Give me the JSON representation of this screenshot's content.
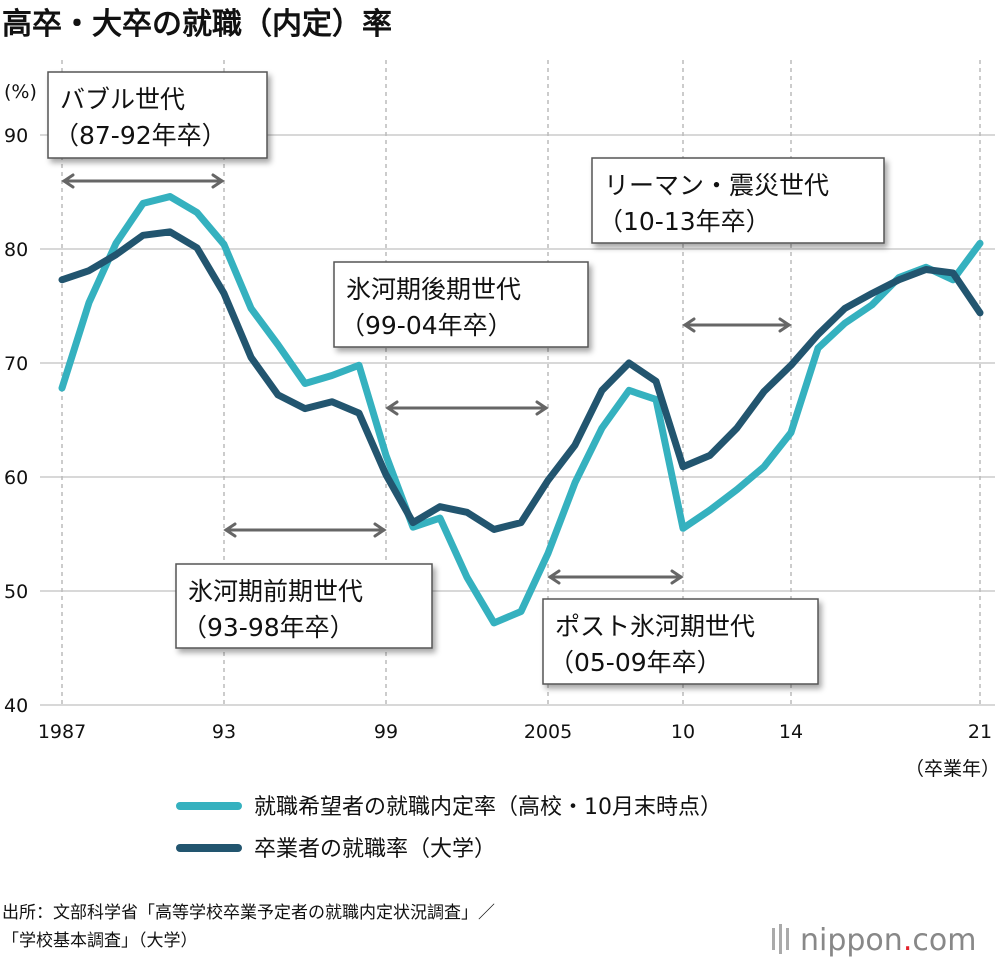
{
  "chart_data": {
    "type": "line",
    "title": "高卒・大卒の就職（内定）率",
    "ylabel": "(%)",
    "xlabel": "（卒業年）",
    "ylim": [
      40,
      90
    ],
    "xlim": [
      1987,
      2021
    ],
    "grid": {
      "horizontal": true,
      "vertical_dashed_at_ticks": true
    },
    "yticks": [
      40,
      50,
      60,
      70,
      80,
      90
    ],
    "ytick_labels": [
      "40",
      "50",
      "60",
      "70",
      "80",
      "90"
    ],
    "xticks": [
      1987,
      1993,
      1999,
      2005,
      2010,
      2014,
      2021
    ],
    "xtick_labels": [
      "1987",
      "93",
      "99",
      "2005",
      "10",
      "14",
      "21"
    ],
    "x": [
      1987,
      1988,
      1989,
      1990,
      1991,
      1992,
      1993,
      1994,
      1995,
      1996,
      1997,
      1998,
      1999,
      2000,
      2001,
      2002,
      2003,
      2004,
      2005,
      2006,
      2007,
      2008,
      2009,
      2010,
      2011,
      2012,
      2013,
      2014,
      2015,
      2016,
      2017,
      2018,
      2019,
      2020,
      2021
    ],
    "series": [
      {
        "name": "就職希望者の就職内定率（高校・10月末時点）",
        "color": "#35b1bf",
        "values": [
          67.8,
          75.3,
          80.5,
          84.0,
          84.6,
          83.2,
          80.4,
          74.8,
          71.6,
          68.2,
          68.9,
          69.8,
          61.9,
          55.6,
          56.4,
          51.2,
          47.2,
          48.2,
          53.3,
          59.5,
          64.3,
          67.6,
          66.8,
          55.5,
          57.1,
          58.9,
          60.9,
          63.9,
          71.3,
          73.5,
          75.1,
          77.5,
          78.4,
          77.3,
          80.5
        ]
      },
      {
        "name": "卒業者の就職率（大学）",
        "color": "#22556f",
        "values": [
          77.3,
          78.1,
          79.5,
          81.2,
          81.5,
          80.1,
          76.1,
          70.5,
          67.2,
          66.0,
          66.6,
          65.6,
          60.2,
          56.0,
          57.4,
          56.9,
          55.4,
          56.0,
          59.7,
          62.8,
          67.6,
          70.0,
          68.4,
          60.9,
          61.9,
          64.3,
          67.5,
          69.8,
          72.5,
          74.8,
          76.1,
          77.3,
          78.2,
          77.9,
          74.4
        ]
      }
    ],
    "annotations": [
      {
        "line1": "バブル世代",
        "line2": "（87-92年卒）",
        "from": 1987,
        "to": 1993
      },
      {
        "line1": "氷河期前期世代",
        "line2": "（93-98年卒）",
        "from": 1993,
        "to": 1999
      },
      {
        "line1": "氷河期後期世代",
        "line2": "（99-04年卒）",
        "from": 1999,
        "to": 2005
      },
      {
        "line1": "ポスト氷河期世代",
        "line2": "（05-09年卒）",
        "from": 2005,
        "to": 2010
      },
      {
        "line1": "リーマン・震災世代",
        "line2": "（10-13年卒）",
        "from": 2010,
        "to": 2014
      }
    ],
    "legend_position": "bottom"
  },
  "source": {
    "line1": "出所：文部科学省「高等学校卒業予定者の就職内定状況調査」／",
    "line2": "「学校基本調査」（大学）"
  },
  "logo": {
    "text": "nippon",
    "dot": ".",
    "suffix": "com"
  }
}
